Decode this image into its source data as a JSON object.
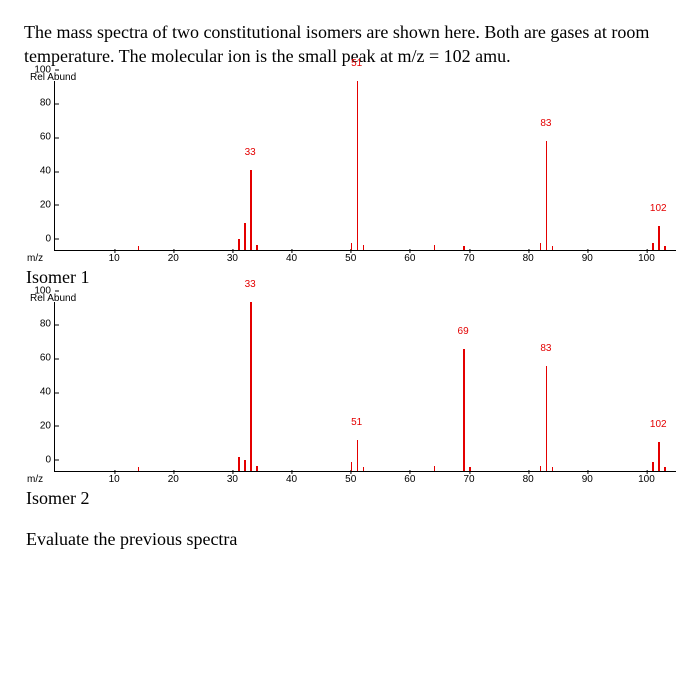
{
  "description": "The mass spectra of two constitutional isomers are shown here. Both are gases at room temperature. The molecular ion is the small peak at m/z = 102 amu.",
  "xlabel": "m/z",
  "ylabel": "Rel Abund",
  "xlim": [
    0,
    105
  ],
  "ylim": [
    0,
    100
  ],
  "xticks": [
    0,
    10,
    20,
    30,
    40,
    50,
    60,
    70,
    80,
    90,
    100
  ],
  "yticks": [
    0,
    20,
    40,
    60,
    80,
    100
  ],
  "peak_color": "#e40000",
  "axis_color": "#000000",
  "isomer1": {
    "title": "Isomer 1",
    "peaks": [
      {
        "mz": 14,
        "abund": 2
      },
      {
        "mz": 31,
        "abund": 6
      },
      {
        "mz": 32,
        "abund": 16
      },
      {
        "mz": 33,
        "abund": 47,
        "label": "33"
      },
      {
        "mz": 34,
        "abund": 3
      },
      {
        "mz": 50,
        "abund": 4
      },
      {
        "mz": 51,
        "abund": 100,
        "label": "51"
      },
      {
        "mz": 52,
        "abund": 3
      },
      {
        "mz": 64,
        "abund": 3
      },
      {
        "mz": 69,
        "abund": 2
      },
      {
        "mz": 82,
        "abund": 4
      },
      {
        "mz": 83,
        "abund": 64,
        "label": "83"
      },
      {
        "mz": 84,
        "abund": 2
      },
      {
        "mz": 101,
        "abund": 4
      },
      {
        "mz": 102,
        "abund": 14,
        "label": "102"
      },
      {
        "mz": 103,
        "abund": 2
      }
    ]
  },
  "isomer2": {
    "title": "Isomer 2",
    "peaks": [
      {
        "mz": 14,
        "abund": 2
      },
      {
        "mz": 31,
        "abund": 8
      },
      {
        "mz": 32,
        "abund": 6
      },
      {
        "mz": 33,
        "abund": 100,
        "label": "33"
      },
      {
        "mz": 34,
        "abund": 3
      },
      {
        "mz": 50,
        "abund": 5
      },
      {
        "mz": 51,
        "abund": 18,
        "label": "51"
      },
      {
        "mz": 52,
        "abund": 2
      },
      {
        "mz": 64,
        "abund": 3
      },
      {
        "mz": 69,
        "abund": 72,
        "label": "69"
      },
      {
        "mz": 70,
        "abund": 2
      },
      {
        "mz": 82,
        "abund": 3
      },
      {
        "mz": 83,
        "abund": 62,
        "label": "83"
      },
      {
        "mz": 84,
        "abund": 2
      },
      {
        "mz": 101,
        "abund": 5
      },
      {
        "mz": 102,
        "abund": 17,
        "label": "102"
      },
      {
        "mz": 103,
        "abund": 2
      }
    ]
  },
  "evaluate": "Evaluate the previous spectra"
}
